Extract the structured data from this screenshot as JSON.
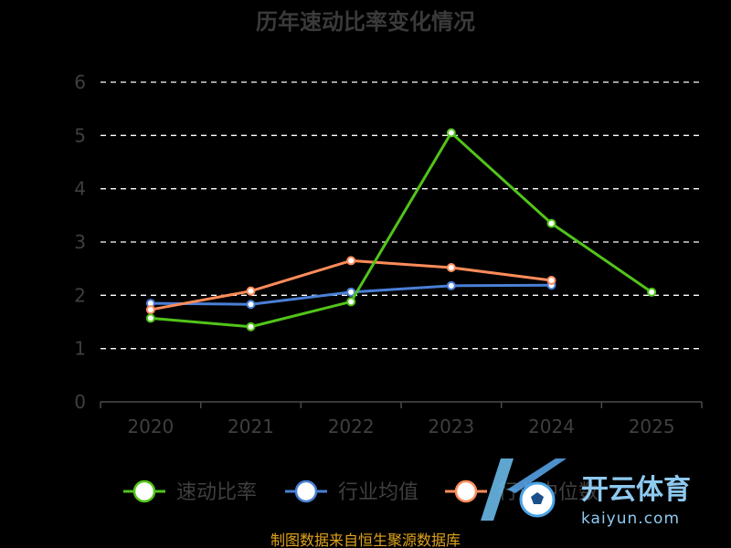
{
  "chart_data": {
    "type": "line",
    "title": "历年速动比率变化情况",
    "categories": [
      "2020",
      "2021",
      "2022",
      "2023",
      "2024",
      "2025"
    ],
    "ylim": [
      0,
      6
    ],
    "yticks": [
      "0",
      "1",
      "2",
      "3",
      "4",
      "5",
      "6"
    ],
    "grid": true,
    "legend_position": "bottom",
    "series": [
      {
        "name": "速动比率",
        "color": "#52c41a",
        "values": [
          1.57,
          1.41,
          1.88,
          5.05,
          3.35,
          2.06
        ]
      },
      {
        "name": "行业均值",
        "color": "#4a7fd6",
        "values": [
          1.85,
          1.83,
          2.06,
          2.18,
          2.19,
          null
        ]
      },
      {
        "name": "行业中位数",
        "color": "#ff8c5a",
        "values": [
          1.73,
          2.08,
          2.65,
          2.52,
          2.28,
          null
        ]
      }
    ]
  },
  "footer": {
    "source": "制图数据来自恒生聚源数据库"
  },
  "watermark": {
    "brand": "开云体育",
    "domain": "kaiyun.com"
  }
}
